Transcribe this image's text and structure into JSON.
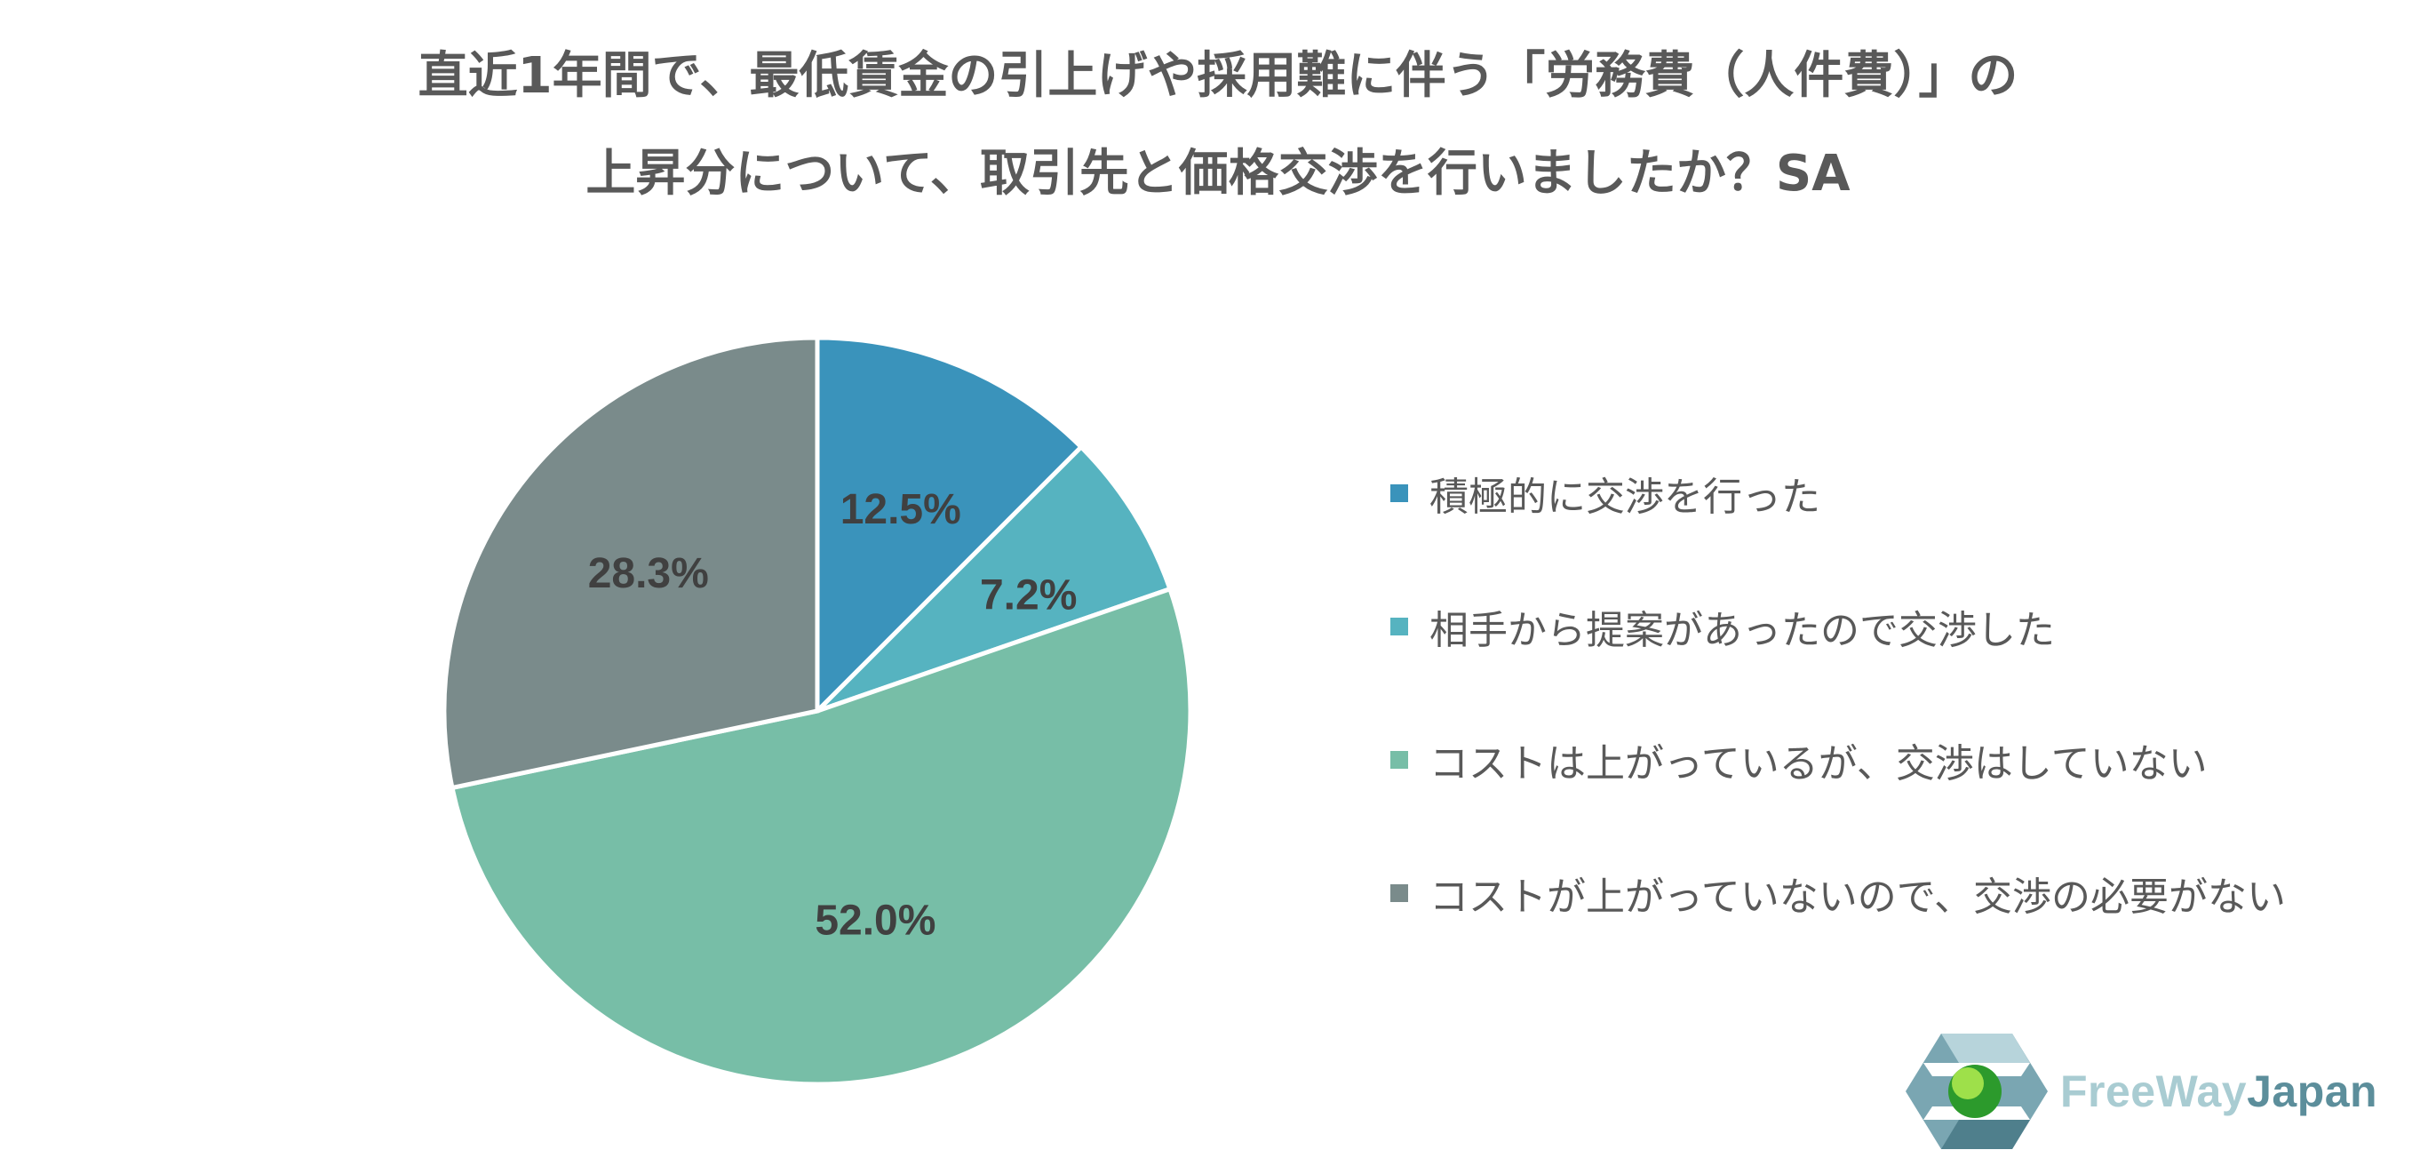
{
  "title_line1": "直近1年間で、最低賃金の引上げや採用難に伴う「労務費（人件費）」の",
  "title_line2": "上昇分について、取引先と価格交渉を行いましたか？SA",
  "chart_data": {
    "type": "pie",
    "title": "直近1年間で、最低賃金の引上げや採用難に伴う「労務費（人件費）」の上昇分について、取引先と価格交渉を行いましたか？SA",
    "legend_position": "right",
    "slices": [
      {
        "label": "積極的に交渉を行った",
        "value": 12.5,
        "display": "12.5%",
        "color": "#3a93bb"
      },
      {
        "label": "相手から提案があったので交渉した",
        "value": 7.2,
        "display": "7.2%",
        "color": "#56b3c0"
      },
      {
        "label": "コストは上がっているが、交渉はしていない",
        "value": 52.0,
        "display": "52.0%",
        "color": "#77bea7"
      },
      {
        "label": "コストが上がっていないので、交渉の必要がない",
        "value": 28.3,
        "display": "28.3%",
        "color": "#7a8b8b"
      }
    ]
  },
  "logo": {
    "part1": "FreeWay",
    "part2": "Japan"
  }
}
